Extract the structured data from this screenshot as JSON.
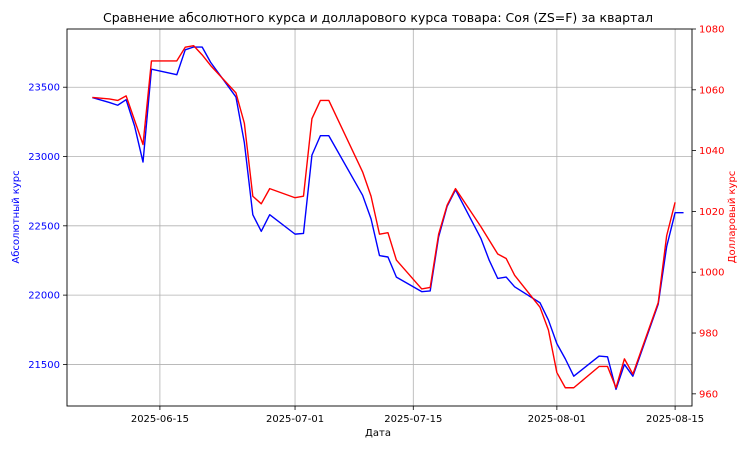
{
  "chart_data": {
    "type": "line",
    "title": "Сравнение абсолютного курса и долларового курса товара: Соя (ZS=F) за квартал",
    "xlabel": "Дата",
    "ylabel_left": "Абсолютный курс",
    "ylabel_right": "Долларовый курс",
    "x_ticks": [
      "2025-06-15",
      "2025-07-01",
      "2025-07-15",
      "2025-08-01",
      "2025-08-15"
    ],
    "y_left_ticks": [
      21500,
      22000,
      22500,
      23000,
      23500
    ],
    "y_right_ticks": [
      960,
      980,
      1000,
      1020,
      1040,
      1060,
      1080
    ],
    "x_range": [
      "2025-06-04",
      "2025-08-17"
    ],
    "y_left_range": [
      21200,
      23920
    ],
    "y_right_range": [
      956,
      1080
    ],
    "grid": true,
    "colors": {
      "left": "#0000ff",
      "right": "#ff0000"
    },
    "series": [
      {
        "axis": "left",
        "color": "#0000ff",
        "points": [
          [
            "2025-06-07",
            23425
          ],
          [
            "2025-06-09",
            23390
          ],
          [
            "2025-06-10",
            23370
          ],
          [
            "2025-06-11",
            23410
          ],
          [
            "2025-06-12",
            23220
          ],
          [
            "2025-06-13",
            22960
          ],
          [
            "2025-06-14",
            23630
          ],
          [
            "2025-06-17",
            23590
          ],
          [
            "2025-06-18",
            23770
          ],
          [
            "2025-06-19",
            23790
          ],
          [
            "2025-06-20",
            23790
          ],
          [
            "2025-06-21",
            23680
          ],
          [
            "2025-06-24",
            23430
          ],
          [
            "2025-06-25",
            23100
          ],
          [
            "2025-06-26",
            22580
          ],
          [
            "2025-06-27",
            22460
          ],
          [
            "2025-06-28",
            22580
          ],
          [
            "2025-07-01",
            22440
          ],
          [
            "2025-07-02",
            22445
          ],
          [
            "2025-07-03",
            23010
          ],
          [
            "2025-07-04",
            23150
          ],
          [
            "2025-07-05",
            23150
          ],
          [
            "2025-07-09",
            22720
          ],
          [
            "2025-07-10",
            22550
          ],
          [
            "2025-07-11",
            22285
          ],
          [
            "2025-07-12",
            22275
          ],
          [
            "2025-07-13",
            22130
          ],
          [
            "2025-07-16",
            22025
          ],
          [
            "2025-07-17",
            22030
          ],
          [
            "2025-07-18",
            22420
          ],
          [
            "2025-07-19",
            22640
          ],
          [
            "2025-07-20",
            22760
          ],
          [
            "2025-07-23",
            22410
          ],
          [
            "2025-07-24",
            22250
          ],
          [
            "2025-07-25",
            22120
          ],
          [
            "2025-07-26",
            22130
          ],
          [
            "2025-07-27",
            22060
          ],
          [
            "2025-07-30",
            21945
          ],
          [
            "2025-07-31",
            21820
          ],
          [
            "2025-08-01",
            21650
          ],
          [
            "2025-08-02",
            21540
          ],
          [
            "2025-08-03",
            21415
          ],
          [
            "2025-08-06",
            21560
          ],
          [
            "2025-08-07",
            21555
          ],
          [
            "2025-08-08",
            21320
          ],
          [
            "2025-08-09",
            21500
          ],
          [
            "2025-08-10",
            21415
          ],
          [
            "2025-08-13",
            21935
          ],
          [
            "2025-08-14",
            22350
          ],
          [
            "2025-08-15",
            22595
          ],
          [
            "2025-08-16",
            22595
          ]
        ]
      },
      {
        "axis": "right",
        "color": "#ff0000",
        "points": [
          [
            "2025-06-07",
            1057.5
          ],
          [
            "2025-06-09",
            1057
          ],
          [
            "2025-06-10",
            1056.5
          ],
          [
            "2025-06-11",
            1058
          ],
          [
            "2025-06-12",
            1050
          ],
          [
            "2025-06-13",
            1042
          ],
          [
            "2025-06-14",
            1069.5
          ],
          [
            "2025-06-17",
            1069.5
          ],
          [
            "2025-06-18",
            1074
          ],
          [
            "2025-06-19",
            1074.5
          ],
          [
            "2025-06-20",
            1071.5
          ],
          [
            "2025-06-21",
            1068
          ],
          [
            "2025-06-24",
            1059
          ],
          [
            "2025-06-25",
            1049
          ],
          [
            "2025-06-26",
            1025
          ],
          [
            "2025-06-27",
            1022.5
          ],
          [
            "2025-06-28",
            1027.5
          ],
          [
            "2025-07-01",
            1024.5
          ],
          [
            "2025-07-02",
            1025
          ],
          [
            "2025-07-03",
            1050.5
          ],
          [
            "2025-07-04",
            1056.5
          ],
          [
            "2025-07-05",
            1056.5
          ],
          [
            "2025-07-09",
            1033
          ],
          [
            "2025-07-10",
            1025
          ],
          [
            "2025-07-11",
            1012.5
          ],
          [
            "2025-07-12",
            1013
          ],
          [
            "2025-07-13",
            1004
          ],
          [
            "2025-07-16",
            994.5
          ],
          [
            "2025-07-17",
            995
          ],
          [
            "2025-07-18",
            1012.5
          ],
          [
            "2025-07-19",
            1022
          ],
          [
            "2025-07-20",
            1027.5
          ],
          [
            "2025-07-23",
            1015
          ],
          [
            "2025-07-25",
            1006
          ],
          [
            "2025-07-26",
            1004.5
          ],
          [
            "2025-07-27",
            999
          ],
          [
            "2025-07-30",
            988.5
          ],
          [
            "2025-07-31",
            981
          ],
          [
            "2025-08-01",
            967
          ],
          [
            "2025-08-02",
            962
          ],
          [
            "2025-08-03",
            962
          ],
          [
            "2025-08-06",
            969
          ],
          [
            "2025-08-07",
            969
          ],
          [
            "2025-08-08",
            962
          ],
          [
            "2025-08-09",
            971.5
          ],
          [
            "2025-08-10",
            966.5
          ],
          [
            "2025-08-13",
            990
          ],
          [
            "2025-08-14",
            1012
          ],
          [
            "2025-08-15",
            1023
          ]
        ]
      }
    ]
  }
}
